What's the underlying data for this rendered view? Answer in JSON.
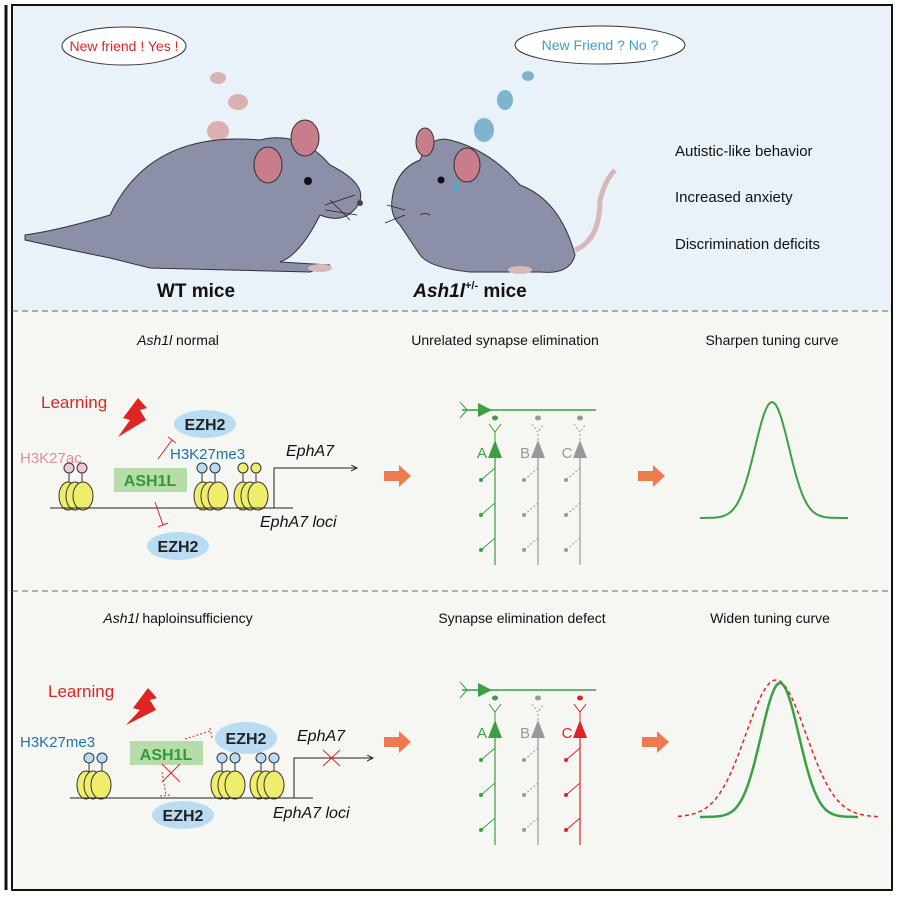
{
  "colors": {
    "top_bg": "#e9f2f9",
    "panel_bg": "#f6f7f2",
    "mouse": "#8c8fa8",
    "green": "#3aa043",
    "red": "#e02424",
    "blue": "#1f6fb2",
    "pink": "#e38aa6",
    "orange": "#ee7b4f",
    "grey": "#999999"
  },
  "top": {
    "wt_bubble": "New friend ! Yes !",
    "ko_bubble": "New Friend ? No ?",
    "wt_label": "WT mice",
    "ko_label_gene": "Ash1l",
    "ko_label_sup": "+/-",
    "ko_label_suffix": " mice",
    "phenotypes": [
      "Autistic-like behavior",
      "Increased anxiety",
      "Discrimination deficits"
    ]
  },
  "normal": {
    "title_gene": "Ash1l",
    "title_rest": " normal",
    "learning": "Learning",
    "ezh2_top": "EZH2",
    "ezh2_bottom": "EZH2",
    "mark_ac": "H3K27ac",
    "mark_me3": "H3K27me3",
    "ash1l": "ASH1L",
    "epha7": "EphA7",
    "loci": "EphA7 loci",
    "synapse_title": "Unrelated synapse elimination",
    "neurons": [
      "A",
      "B",
      "C"
    ],
    "curve_title": "Sharpen tuning curve"
  },
  "haplo": {
    "title_gene": "Ash1l",
    "title_rest": " haploinsufficiency",
    "learning": "Learning",
    "ezh2_top": "EZH2",
    "ezh2_bottom": "EZH2",
    "mark_me3": "H3K27me3",
    "ash1l": "ASH1L",
    "epha7": "EphA7",
    "loci": "EphA7 loci",
    "synapse_title": "Synapse elimination defect",
    "neurons": [
      "A",
      "B",
      "C"
    ],
    "curve_title": "Widen tuning curve"
  }
}
